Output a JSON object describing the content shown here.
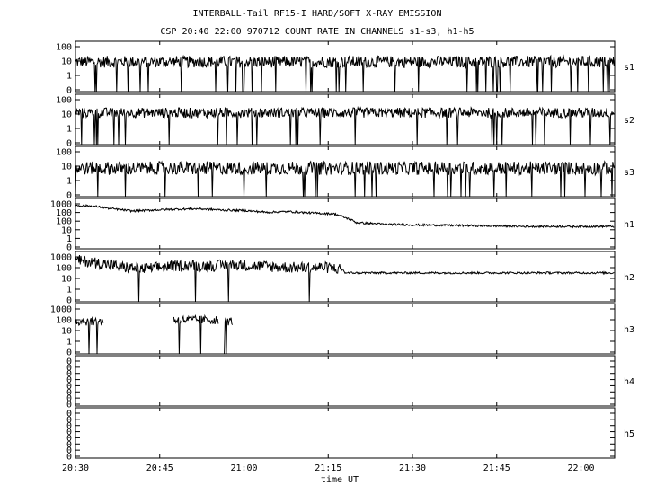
{
  "title": "INTERBALL-Tail RF15-I HARD/SOFT X-RAY EMISSION",
  "subtitle": "CSP 20:40 22:00 970712  COUNT RATE IN CHANNELS s1-s3, h1-h5",
  "chart_data": {
    "type": "line",
    "title": "INTERBALL-Tail RF15-I HARD/SOFT X-RAY EMISSION",
    "subtitle": "CSP 20:40 22:00 970712  COUNT RATE IN CHANNELS s1-s3, h1-h5",
    "xlabel": "time UT",
    "x_ticks": [
      "20:30",
      "20:45",
      "21:00",
      "21:15",
      "21:30",
      "21:45",
      "22:00"
    ],
    "x_range_minutes": [
      0,
      96
    ],
    "y_scale": "log",
    "grid": false,
    "panels": [
      {
        "name": "s1",
        "y_ticks": [
          "100",
          "10",
          "1",
          "0"
        ],
        "ylim": [
          0.1,
          100
        ],
        "segments": [
          {
            "from": 0,
            "to": 96,
            "level": 6,
            "noise": 0.35
          }
        ]
      },
      {
        "name": "s2",
        "y_ticks": [
          "100",
          "10",
          "1",
          "0"
        ],
        "ylim": [
          0.1,
          100
        ],
        "segments": [
          {
            "from": 0,
            "to": 96,
            "level": 8,
            "noise": 0.3
          }
        ]
      },
      {
        "name": "s3",
        "y_ticks": [
          "100",
          "10",
          "1",
          "0"
        ],
        "ylim": [
          0.1,
          100
        ],
        "segments": [
          {
            "from": 0,
            "to": 96,
            "level": 5,
            "noise": 0.4
          }
        ]
      },
      {
        "name": "h1",
        "y_ticks": [
          "1000",
          "100",
          "100",
          "10",
          "1",
          "0"
        ],
        "ylim": [
          0.1,
          1000
        ],
        "points": [
          [
            0,
            280
          ],
          [
            3,
            250
          ],
          [
            6,
            160
          ],
          [
            10,
            100
          ],
          [
            14,
            120
          ],
          [
            18,
            140
          ],
          [
            22,
            150
          ],
          [
            26,
            120
          ],
          [
            30,
            110
          ],
          [
            34,
            80
          ],
          [
            38,
            90
          ],
          [
            42,
            70
          ],
          [
            46,
            60
          ],
          [
            48,
            30
          ],
          [
            50,
            12
          ],
          [
            55,
            9
          ],
          [
            60,
            8
          ],
          [
            70,
            7
          ],
          [
            80,
            6
          ],
          [
            90,
            6
          ],
          [
            96,
            6
          ]
        ]
      },
      {
        "name": "h2",
        "y_ticks": [
          "1000",
          "100",
          "10",
          "1",
          "0"
        ],
        "ylim": [
          0.1,
          1000
        ],
        "points": [
          [
            0,
            200
          ],
          [
            4,
            120
          ],
          [
            8,
            60
          ],
          [
            12,
            40
          ],
          [
            16,
            60
          ],
          [
            20,
            80
          ],
          [
            24,
            70
          ],
          [
            28,
            90
          ],
          [
            32,
            70
          ],
          [
            36,
            60
          ],
          [
            40,
            50
          ],
          [
            44,
            55
          ],
          [
            47.5,
            40
          ],
          [
            48,
            20
          ],
          [
            96,
            20
          ]
        ],
        "noisy_until": 47.5
      },
      {
        "name": "h3",
        "y_ticks": [
          "1000",
          "100",
          "10",
          "1",
          "0"
        ],
        "ylim": [
          0.1,
          1000
        ],
        "segments": [
          {
            "from": 0,
            "to": 5,
            "level": 40,
            "noise": 0.35
          },
          {
            "from": 17.5,
            "to": 25.5,
            "level": 50,
            "noise": 0.35
          },
          {
            "from": 26.5,
            "to": 28,
            "level": 40,
            "noise": 0.35
          }
        ]
      },
      {
        "name": "h4",
        "y_ticks": [
          "0",
          "0",
          "0",
          "0",
          "0",
          "0",
          "0",
          "0"
        ],
        "ylim": [
          0,
          1
        ],
        "segments": []
      },
      {
        "name": "h5",
        "y_ticks": [
          "0",
          "0",
          "0",
          "0",
          "0",
          "0",
          "0",
          "0"
        ],
        "ylim": [
          0,
          1
        ],
        "segments": []
      }
    ]
  }
}
